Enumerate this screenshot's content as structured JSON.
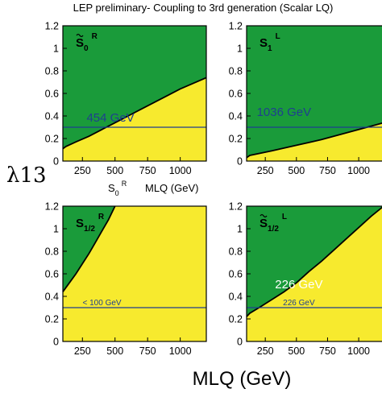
{
  "title": "LEP preliminary- Coupling to 3rd generation (Scalar LQ)",
  "y_axis_label": "λ13",
  "x_axis_label": "MLQ (GeV)",
  "colors": {
    "excluded": "#1a9b3a",
    "allowed": "#f7ea2e",
    "line": "#1f3f8f",
    "boundary": "#000000"
  },
  "chart_data": [
    {
      "type": "area",
      "panel_label": "S̃0R",
      "xlim": [
        100,
        1200
      ],
      "ylim": [
        0,
        1.2
      ],
      "x_ticks": [
        250,
        500,
        750,
        1000
      ],
      "y_ticks": [
        0,
        0.2,
        0.4,
        0.6,
        0.8,
        1,
        1.2
      ],
      "boundary_x": [
        100,
        125,
        200,
        300,
        400,
        500,
        600,
        700,
        800,
        900,
        1000,
        1100,
        1200
      ],
      "boundary_y": [
        0.11,
        0.13,
        0.17,
        0.22,
        0.28,
        0.34,
        0.4,
        0.46,
        0.52,
        0.58,
        0.64,
        0.69,
        0.74
      ],
      "ref_line_y": 0.3,
      "annotation": "454 GeV",
      "annotation_pos": [
        465,
        0.35
      ],
      "under_label_base": "S",
      "under_label_sub": "0",
      "under_label_sup": "R",
      "under_label_x": "MLQ (GeV)"
    },
    {
      "type": "area",
      "panel_label": "S1L",
      "xlim": [
        100,
        1200
      ],
      "ylim": [
        0,
        1.2
      ],
      "x_ticks": [
        250,
        500,
        750,
        1000
      ],
      "y_ticks": [
        0,
        0.2,
        0.4,
        0.6,
        0.8,
        1,
        1.2
      ],
      "boundary_x": [
        100,
        125,
        300,
        500,
        700,
        900,
        1100,
        1200
      ],
      "boundary_y": [
        0.03,
        0.05,
        0.09,
        0.14,
        0.19,
        0.25,
        0.31,
        0.34
      ],
      "ref_line_y": 0.3,
      "annotation": "1036 GeV",
      "annotation_pos": [
        400,
        0.4
      ]
    },
    {
      "type": "area",
      "panel_label": "S1/2R",
      "xlim": [
        100,
        1200
      ],
      "ylim": [
        0,
        1.2
      ],
      "x_ticks": [
        250,
        500,
        750,
        1000
      ],
      "y_ticks": [
        0,
        0.2,
        0.4,
        0.6,
        0.8,
        1,
        1.2
      ],
      "boundary_x": [
        100,
        125,
        150,
        200,
        250,
        300,
        350,
        400,
        450,
        500
      ],
      "boundary_y": [
        0.44,
        0.48,
        0.52,
        0.6,
        0.69,
        0.78,
        0.88,
        0.98,
        1.08,
        1.2
      ],
      "ref_line_y": 0.3,
      "annotation": "< 100 GeV",
      "annotation_pos": [
        400,
        0.32
      ]
    },
    {
      "type": "area",
      "panel_label": "S̃1/2L",
      "xlim": [
        100,
        1200
      ],
      "ylim": [
        0,
        1.2
      ],
      "x_ticks": [
        250,
        500,
        750,
        1000
      ],
      "y_ticks": [
        0,
        0.2,
        0.4,
        0.6,
        0.8,
        1,
        1.2
      ],
      "boundary_x": [
        100,
        125,
        200,
        300,
        400,
        500,
        600,
        700,
        800,
        900,
        1000,
        1100,
        1200
      ],
      "boundary_y": [
        0.22,
        0.25,
        0.3,
        0.37,
        0.44,
        0.52,
        0.62,
        0.71,
        0.81,
        0.91,
        1.01,
        1.11,
        1.2
      ],
      "ref_line_y": 0.3,
      "annotation": "226 GeV",
      "annotation_pos": [
        520,
        0.47
      ],
      "annotation2": "226 GeV",
      "annotation2_pos": [
        520,
        0.32
      ]
    }
  ]
}
